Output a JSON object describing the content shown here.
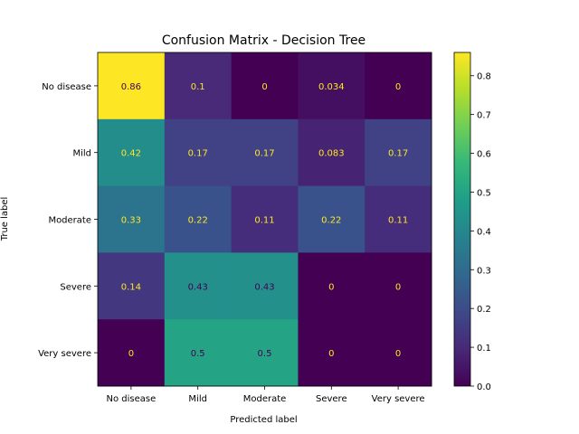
{
  "chart_data": {
    "type": "heatmap",
    "title": "Confusion Matrix - Decision Tree",
    "xlabel": "Predicted label",
    "ylabel": "True label",
    "x_categories": [
      "No disease",
      "Mild",
      "Moderate",
      "Severe",
      "Very severe"
    ],
    "y_categories": [
      "No disease",
      "Mild",
      "Moderate",
      "Severe",
      "Very severe"
    ],
    "values": [
      [
        0.86,
        0.1,
        0,
        0.034,
        0
      ],
      [
        0.42,
        0.17,
        0.17,
        0.083,
        0.17
      ],
      [
        0.33,
        0.22,
        0.11,
        0.22,
        0.11
      ],
      [
        0.14,
        0.43,
        0.43,
        0,
        0
      ],
      [
        0,
        0.5,
        0.5,
        0,
        0
      ]
    ],
    "cell_labels": [
      [
        "0.86",
        "0.1",
        "0",
        "0.034",
        "0"
      ],
      [
        "0.42",
        "0.17",
        "0.17",
        "0.083",
        "0.17"
      ],
      [
        "0.33",
        "0.22",
        "0.11",
        "0.22",
        "0.11"
      ],
      [
        "0.14",
        "0.43",
        "0.43",
        "0",
        "0"
      ],
      [
        "0",
        "0.5",
        "0.5",
        "0",
        "0"
      ]
    ],
    "colormap": "viridis",
    "colorbar": {
      "range": [
        0,
        0.86
      ],
      "ticks": [
        0.0,
        0.1,
        0.2,
        0.3,
        0.4,
        0.5,
        0.6,
        0.7,
        0.8
      ],
      "tick_labels": [
        "0.0",
        "0.1",
        "0.2",
        "0.3",
        "0.4",
        "0.5",
        "0.6",
        "0.7",
        "0.8"
      ]
    },
    "grid": false,
    "text_colors": {
      "on_dark": "#fde725",
      "on_light": "#440154"
    }
  }
}
